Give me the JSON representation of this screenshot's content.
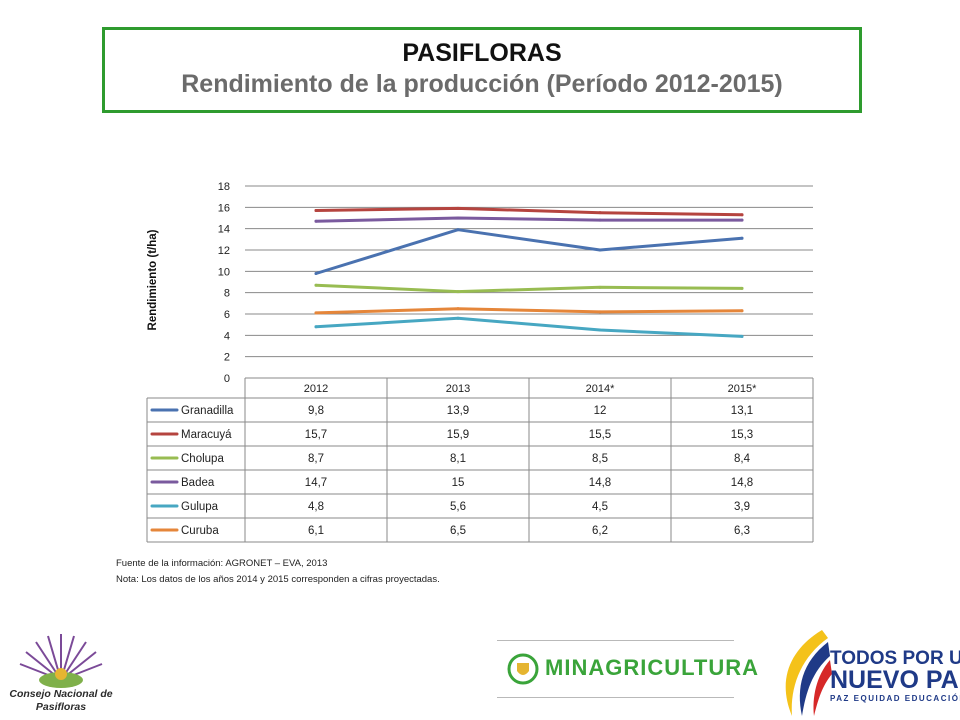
{
  "title": {
    "main": "PASIFLORAS",
    "sub": "Rendimiento de la producción (Período 2012-2015)"
  },
  "chart_data": {
    "type": "line",
    "categories": [
      "2012",
      "2013",
      "2014*",
      "2015*"
    ],
    "ylabel": "Rendimiento (t/ha)",
    "ylim": [
      0,
      18
    ],
    "yticks": [
      "0",
      "2",
      "4",
      "6",
      "8",
      "10",
      "12",
      "14",
      "16",
      "18"
    ],
    "grid": true,
    "legend": "data-table",
    "series": [
      {
        "name": "Granadilla",
        "color": "#4a72b0",
        "values": [
          9.8,
          13.9,
          12,
          13.1
        ],
        "labels": [
          "9,8",
          "13,9",
          "12",
          "13,1"
        ]
      },
      {
        "name": "Maracuyá",
        "color": "#b5443f",
        "values": [
          15.7,
          15.9,
          15.5,
          15.3
        ],
        "labels": [
          "15,7",
          "15,9",
          "15,5",
          "15,3"
        ]
      },
      {
        "name": "Cholupa",
        "color": "#98bc52",
        "values": [
          8.7,
          8.1,
          8.5,
          8.4
        ],
        "labels": [
          "8,7",
          "8,1",
          "8,5",
          "8,4"
        ]
      },
      {
        "name": "Badea",
        "color": "#7a5a9e",
        "values": [
          14.7,
          15,
          14.8,
          14.8
        ],
        "labels": [
          "14,7",
          "15",
          "14,8",
          "14,8"
        ]
      },
      {
        "name": "Gulupa",
        "color": "#47a7c2",
        "values": [
          4.8,
          5.6,
          4.5,
          3.9
        ],
        "labels": [
          "4,8",
          "5,6",
          "4,5",
          "3,9"
        ]
      },
      {
        "name": "Curuba",
        "color": "#e5863a",
        "values": [
          6.1,
          6.5,
          6.2,
          6.3
        ],
        "labels": [
          "6,1",
          "6,5",
          "6,2",
          "6,3"
        ]
      }
    ]
  },
  "notes": {
    "source": "Fuente de la información: AGRONET – EVA, 2013",
    "note": "Nota: Los datos de los años 2014 y 2015 corresponden  a cifras proyectadas."
  },
  "logos": {
    "left_line1": "Consejo Nacional de",
    "left_line2": "Pasifloras",
    "mid": "MINAGRICULTURA",
    "right_line1": "TODOS POR UN",
    "right_line2": "NUEVO PAÍS",
    "right_line3": "PAZ  EQUIDAD  EDUCACIÓN"
  }
}
